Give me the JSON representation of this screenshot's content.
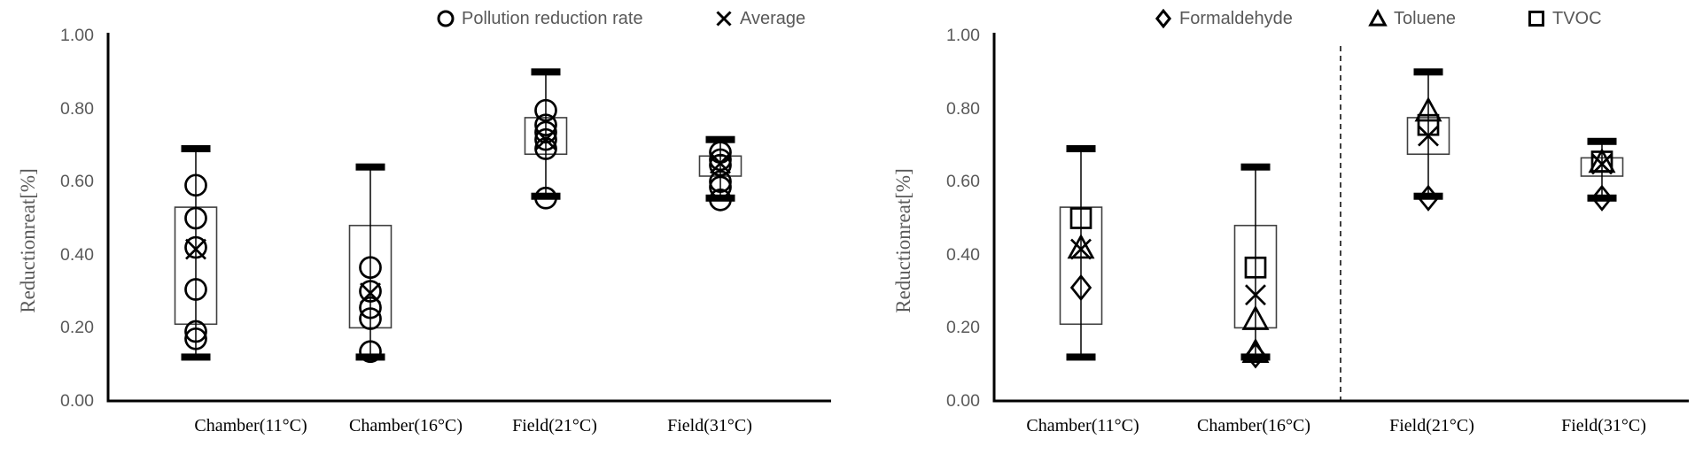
{
  "colors": {
    "background": "#ffffff",
    "axis": "#000000",
    "marker": "#000000",
    "box_stroke": "#404040",
    "label_gray": "#595959",
    "category_black": "#000000"
  },
  "chart_data": [
    {
      "type": "box-scatter",
      "title": "",
      "ylabel": "Reductionreat[%]",
      "xlabel": "",
      "ylim": [
        0.0,
        1.0
      ],
      "grid": false,
      "legend_position": "top",
      "y_ticks": [
        {
          "label": "0.00",
          "value": 0.0
        },
        {
          "label": "0.20",
          "value": 0.2
        },
        {
          "label": "0.40",
          "value": 0.4
        },
        {
          "label": "0.60",
          "value": 0.6
        },
        {
          "label": "0.80",
          "value": 0.8
        },
        {
          "label": "1.00",
          "value": 1.0
        }
      ],
      "categories": [
        "Chamber(11°C)",
        "Chamber(16°C)",
        "Field(21°C)",
        "Field(31°C)"
      ],
      "legend": [
        {
          "marker": "circle",
          "label": "Pollution reduction rate"
        },
        {
          "marker": "x",
          "label": "Average"
        }
      ],
      "boxes": [
        {
          "whisker_low": 0.12,
          "box_low": 0.21,
          "box_high": 0.53,
          "whisker_high": 0.69
        },
        {
          "whisker_low": 0.12,
          "box_low": 0.2,
          "box_high": 0.48,
          "whisker_high": 0.64
        },
        {
          "whisker_low": 0.56,
          "box_low": 0.675,
          "box_high": 0.775,
          "whisker_high": 0.9
        },
        {
          "whisker_low": 0.555,
          "box_low": 0.615,
          "box_high": 0.67,
          "whisker_high": 0.715
        }
      ],
      "series": [
        {
          "name": "Pollution reduction rate",
          "marker": "circle",
          "values": [
            [
              0.59,
              0.5,
              0.42,
              0.305,
              0.19,
              0.17
            ],
            [
              0.365,
              0.3,
              0.255,
              0.225,
              0.135
            ],
            [
              0.795,
              0.755,
              0.735,
              0.715,
              0.69,
              0.555
            ],
            [
              0.68,
              0.66,
              0.645,
              0.6,
              0.585,
              0.55
            ]
          ]
        },
        {
          "name": "Average",
          "marker": "x",
          "values": [
            [
              0.415
            ],
            [
              0.295
            ],
            [
              0.715
            ],
            [
              0.65
            ]
          ]
        }
      ]
    },
    {
      "type": "box-scatter",
      "title": "",
      "ylabel": "Reductionreat[%]",
      "xlabel": "",
      "ylim": [
        0.0,
        1.0
      ],
      "grid": false,
      "legend_position": "top",
      "separator": {
        "style": "dashed-vertical",
        "between_categories": [
          "Chamber(16°C)",
          "Field(21°C)"
        ]
      },
      "y_ticks": [
        {
          "label": "0.00",
          "value": 0.0
        },
        {
          "label": "0.20",
          "value": 0.2
        },
        {
          "label": "0.40",
          "value": 0.4
        },
        {
          "label": "0.60",
          "value": 0.6
        },
        {
          "label": "0.80",
          "value": 0.8
        },
        {
          "label": "1.00",
          "value": 1.0
        }
      ],
      "categories": [
        "Chamber(11°C)",
        "Chamber(16°C)",
        "Field(21°C)",
        "Field(31°C)"
      ],
      "legend": [
        {
          "marker": "diamond",
          "label": "Formaldehyde"
        },
        {
          "marker": "triangle",
          "label": "Toluene"
        },
        {
          "marker": "square",
          "label": "TVOC"
        }
      ],
      "boxes": [
        {
          "whisker_low": 0.12,
          "box_low": 0.21,
          "box_high": 0.53,
          "whisker_high": 0.69
        },
        {
          "whisker_low": 0.12,
          "box_low": 0.2,
          "box_high": 0.48,
          "whisker_high": 0.64
        },
        {
          "whisker_low": 0.56,
          "box_low": 0.675,
          "box_high": 0.775,
          "whisker_high": 0.9
        },
        {
          "whisker_low": 0.555,
          "box_low": 0.615,
          "box_high": 0.665,
          "whisker_high": 0.71
        }
      ],
      "series": [
        {
          "name": "Formaldehyde",
          "marker": "diamond",
          "values": [
            [
              0.31
            ],
            [
              0.125
            ],
            [
              0.555
            ],
            [
              0.555
            ]
          ]
        },
        {
          "name": "Toluene",
          "marker": "triangle",
          "values": [
            [
              0.42
            ],
            [
              0.225,
              0.135
            ],
            [
              0.795
            ],
            [
              0.655
            ]
          ]
        },
        {
          "name": "TVOC",
          "marker": "square",
          "values": [
            [
              0.5
            ],
            [
              0.365
            ],
            [
              0.755
            ],
            [
              0.655
            ]
          ]
        },
        {
          "name": "Average",
          "marker": "x",
          "values": [
            [
              0.415
            ],
            [
              0.29
            ],
            [
              0.725
            ],
            [
              0.648
            ]
          ]
        }
      ]
    }
  ]
}
